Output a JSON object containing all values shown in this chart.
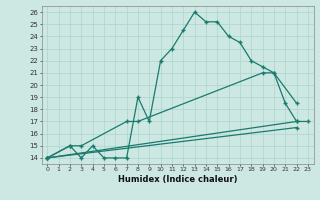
{
  "title": "",
  "xlabel": "Humidex (Indice chaleur)",
  "ylabel": "",
  "xlim": [
    -0.5,
    23.5
  ],
  "ylim": [
    13.5,
    26.5
  ],
  "xticks": [
    0,
    1,
    2,
    3,
    4,
    5,
    6,
    7,
    8,
    9,
    10,
    11,
    12,
    13,
    14,
    15,
    16,
    17,
    18,
    19,
    20,
    21,
    22,
    23
  ],
  "yticks": [
    14,
    15,
    16,
    17,
    18,
    19,
    20,
    21,
    22,
    23,
    24,
    25,
    26
  ],
  "background_color": "#cde8e2",
  "grid_color": "#b0d8d0",
  "line_color": "#1a7a6e",
  "lines": [
    {
      "x": [
        0,
        2,
        3,
        4,
        5,
        6,
        7,
        8,
        9,
        10,
        11,
        12,
        13,
        14,
        15,
        16,
        17,
        18,
        19,
        20,
        21,
        22,
        23
      ],
      "y": [
        14,
        15,
        14,
        15,
        14,
        14,
        14,
        19,
        17,
        22,
        23,
        24.5,
        26,
        25.2,
        25.2,
        24,
        23.5,
        22,
        21.5,
        21,
        18.5,
        17,
        17
      ]
    },
    {
      "x": [
        0,
        2,
        3,
        7,
        8,
        19,
        20,
        22
      ],
      "y": [
        14,
        15,
        15,
        17,
        17,
        21,
        21,
        18.5
      ]
    },
    {
      "x": [
        0,
        22
      ],
      "y": [
        14,
        17
      ]
    },
    {
      "x": [
        0,
        22
      ],
      "y": [
        14,
        16.5
      ]
    }
  ]
}
